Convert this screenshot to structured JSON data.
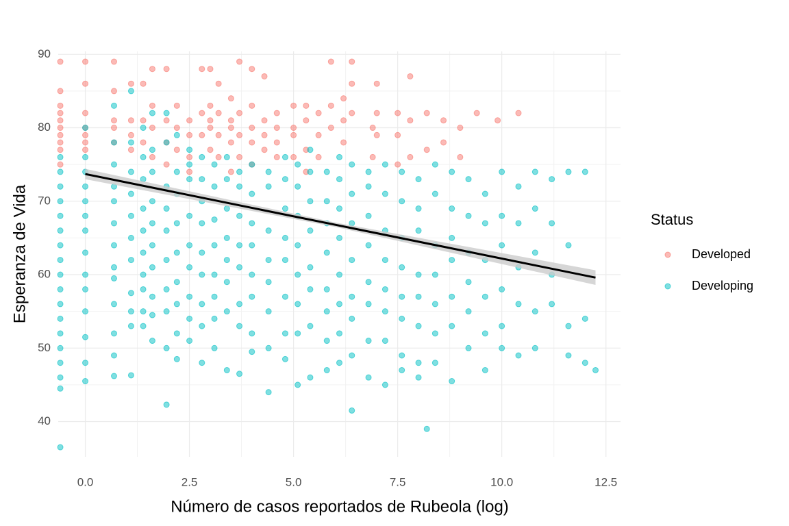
{
  "chart_data": {
    "type": "scatter",
    "x_label": "Número de casos reportados de Rubeola (log)",
    "y_label": "Esperanza de Vida",
    "legend_title": "Status",
    "legend_position": "right",
    "grid": true,
    "xlim": [
      -0.65,
      12.85
    ],
    "ylim": [
      35.2,
      90.4
    ],
    "xticks": [
      {
        "value": 0,
        "label": "0.0"
      },
      2.5,
      {
        "value": 5,
        "label": "5.0"
      },
      7.5,
      {
        "value": 10,
        "label": "10.0"
      },
      12.5
    ],
    "yticks": [
      40,
      50,
      60,
      70,
      80,
      90
    ],
    "series": [
      {
        "name": "Developed",
        "color": "#F8766D",
        "x": [
          -0.6,
          -0.6,
          -0.6,
          -0.6,
          -0.6,
          -0.6,
          -0.6,
          -0.6,
          -0.6,
          -0.6,
          0,
          0,
          0,
          0,
          0,
          0,
          0,
          0.69,
          0.69,
          0.69,
          0.69,
          0.69,
          1.1,
          1.1,
          1.1,
          1.1,
          1.39,
          1.39,
          1.39,
          1.61,
          1.61,
          1.61,
          1.61,
          1.95,
          1.95,
          1.95,
          1.95,
          2.2,
          2.2,
          2.2,
          2.5,
          2.5,
          2.5,
          2.5,
          2.8,
          2.8,
          2.8,
          3,
          3,
          3,
          3,
          3,
          3.2,
          3.2,
          3.2,
          3.2,
          3.5,
          3.5,
          3.5,
          3.5,
          3.5,
          3.7,
          3.7,
          3.7,
          3.7,
          4,
          4,
          4,
          4,
          4,
          4.3,
          4.3,
          4.3,
          4.3,
          4.6,
          4.6,
          4.6,
          4.6,
          5,
          5,
          5,
          5,
          5.3,
          5.3,
          5.3,
          5.3,
          5.6,
          5.6,
          5.6,
          5.9,
          5.9,
          5.9,
          6.2,
          6.2,
          6.2,
          6.4,
          6.4,
          6.4,
          6.9,
          6.9,
          7,
          7,
          7,
          7.5,
          7.5,
          7.5,
          7.8,
          7.8,
          7.8,
          8.2,
          8.2,
          8.6,
          8.6,
          9,
          9,
          9.4,
          9.9,
          10.4
        ],
        "values": [
          89,
          85,
          83,
          82,
          81,
          80,
          79,
          78,
          77,
          75,
          89,
          86,
          82,
          80,
          79,
          78,
          77,
          89,
          85,
          81,
          80,
          78,
          86,
          81,
          79,
          77,
          86,
          81,
          78,
          88,
          83,
          80,
          76,
          88,
          81,
          78,
          75,
          83,
          80,
          77,
          81,
          79,
          76,
          74,
          88,
          82,
          79,
          88,
          83,
          81,
          80,
          77,
          86,
          82,
          79,
          76,
          84,
          81,
          80,
          78,
          74,
          89,
          82,
          79,
          76,
          88,
          83,
          80,
          78,
          75,
          87,
          81,
          79,
          77,
          82,
          80,
          78,
          76,
          83,
          80,
          79,
          76,
          83,
          81,
          77,
          74,
          82,
          79,
          76,
          89,
          83,
          80,
          84,
          81,
          78,
          89,
          86,
          82,
          80,
          76,
          86,
          82,
          79,
          82,
          79,
          75,
          87,
          81,
          76,
          82,
          77,
          81,
          78,
          80,
          76,
          82,
          81,
          82
        ]
      },
      {
        "name": "Developing",
        "color": "#00BFC4",
        "x": [
          -0.6,
          -0.6,
          -0.6,
          -0.6,
          -0.6,
          -0.6,
          -0.6,
          -0.6,
          -0.6,
          -0.6,
          -0.6,
          -0.6,
          -0.6,
          -0.6,
          -0.6,
          -0.6,
          -0.6,
          -0.6,
          0,
          0,
          0,
          0,
          0,
          0,
          0,
          0,
          0,
          0,
          0,
          0,
          0,
          0,
          0.69,
          0.69,
          0.69,
          0.69,
          0.69,
          0.69,
          0.69,
          0.69,
          0.69,
          0.69,
          0.69,
          0.69,
          0.69,
          1.1,
          1.1,
          1.1,
          1.1,
          1.1,
          1.1,
          1.1,
          1.1,
          1.1,
          1.1,
          1.1,
          1.39,
          1.39,
          1.39,
          1.39,
          1.39,
          1.39,
          1.39,
          1.39,
          1.39,
          1.39,
          1.61,
          1.61,
          1.61,
          1.61,
          1.61,
          1.61,
          1.61,
          1.61,
          1.61,
          1.61,
          1.95,
          1.95,
          1.95,
          1.95,
          1.95,
          1.95,
          1.95,
          1.95,
          1.95,
          1.95,
          2.2,
          2.2,
          2.2,
          2.2,
          2.2,
          2.2,
          2.2,
          2.2,
          2.2,
          2.5,
          2.5,
          2.5,
          2.5,
          2.5,
          2.5,
          2.5,
          2.5,
          2.5,
          2.8,
          2.8,
          2.8,
          2.8,
          2.8,
          2.8,
          2.8,
          2.8,
          2.8,
          3.1,
          3.1,
          3.1,
          3.1,
          3.1,
          3.1,
          3.1,
          3.1,
          3.4,
          3.4,
          3.4,
          3.4,
          3.4,
          3.4,
          3.4,
          3.4,
          3.7,
          3.7,
          3.7,
          3.7,
          3.7,
          3.7,
          3.7,
          3.7,
          4,
          4,
          4,
          4,
          4,
          4,
          4,
          4,
          4.4,
          4.4,
          4.4,
          4.4,
          4.4,
          4.4,
          4.4,
          4.4,
          4.8,
          4.8,
          4.8,
          4.8,
          4.8,
          4.8,
          4.8,
          4.8,
          5.1,
          5.1,
          5.1,
          5.1,
          5.1,
          5.1,
          5.1,
          5.1,
          5.4,
          5.4,
          5.4,
          5.4,
          5.4,
          5.4,
          5.4,
          5.4,
          5.8,
          5.8,
          5.8,
          5.8,
          5.8,
          5.8,
          5.8,
          5.8,
          6.1,
          6.1,
          6.1,
          6.1,
          6.1,
          6.1,
          6.1,
          6.1,
          6.4,
          6.4,
          6.4,
          6.4,
          6.4,
          6.4,
          6.4,
          6.4,
          6.8,
          6.8,
          6.8,
          6.8,
          6.8,
          6.8,
          6.8,
          6.8,
          7.2,
          7.2,
          7.2,
          7.2,
          7.2,
          7.2,
          7.2,
          7.2,
          7.6,
          7.6,
          7.6,
          7.6,
          7.6,
          7.6,
          7.6,
          7.6,
          8,
          8,
          8,
          8,
          8,
          8,
          8,
          8,
          8.2,
          8.4,
          8.4,
          8.4,
          8.4,
          8.4,
          8.4,
          8.4,
          8.8,
          8.8,
          8.8,
          8.8,
          8.8,
          8.8,
          8.8,
          9.2,
          9.2,
          9.2,
          9.2,
          9.2,
          9.2,
          9.6,
          9.6,
          9.6,
          9.6,
          9.6,
          9.6,
          10,
          10,
          10,
          10,
          10,
          10,
          10.4,
          10.4,
          10.4,
          10.4,
          10.4,
          10.8,
          10.8,
          10.8,
          10.8,
          10.8,
          11.2,
          11.2,
          11.2,
          11.2,
          11.6,
          11.6,
          11.6,
          11.6,
          12,
          12,
          12,
          12.25
        ],
        "values": [
          76,
          74,
          72,
          70,
          68,
          66,
          64,
          62,
          60,
          58,
          56,
          54,
          52,
          50,
          48,
          46,
          44.5,
          36.5,
          80,
          76,
          74,
          72,
          70,
          68,
          66,
          63,
          60,
          58,
          55,
          51.5,
          48,
          45.5,
          83,
          78,
          75,
          72,
          70,
          67,
          64,
          61,
          59.5,
          56,
          52,
          49,
          46.2,
          85,
          78,
          74,
          71,
          68,
          65,
          62,
          57.5,
          55,
          53,
          46.3,
          80,
          76,
          73,
          69,
          66,
          63,
          60,
          58,
          55,
          53,
          82,
          77,
          74,
          70,
          67,
          64,
          61,
          57,
          54.5,
          51,
          82,
          78,
          72,
          69,
          66,
          62,
          58,
          55,
          50,
          42.3,
          79,
          74,
          71,
          67,
          63,
          59,
          56,
          52,
          48.5,
          77,
          75,
          73,
          68,
          64,
          61,
          57,
          54,
          51,
          76,
          73,
          70,
          67,
          63,
          60,
          56,
          53,
          48,
          75,
          72,
          67.5,
          64,
          60,
          57,
          54,
          50,
          76,
          73,
          69,
          65,
          62,
          59,
          55,
          47,
          74,
          72,
          68,
          64,
          61,
          56,
          53,
          46.5,
          75,
          71,
          67,
          64,
          60,
          57,
          52,
          49.5,
          74,
          72,
          66,
          62,
          59,
          55,
          50,
          44,
          76,
          73,
          69,
          65,
          62,
          57,
          52,
          48.5,
          75,
          72,
          68,
          64,
          60,
          56,
          52,
          45,
          77,
          74,
          70,
          66,
          61,
          58,
          53,
          46,
          74,
          70,
          67,
          63,
          58,
          55,
          51,
          47,
          76,
          73,
          69,
          65,
          60,
          56,
          52,
          48,
          75,
          71,
          67,
          62,
          57,
          54,
          49,
          41.5,
          74,
          72,
          68,
          64,
          59,
          56,
          51,
          46,
          75,
          71,
          66,
          62,
          58,
          55,
          51,
          45,
          74,
          70,
          65,
          61,
          57,
          54,
          49,
          47,
          73,
          69,
          66,
          60,
          57,
          53,
          48,
          46,
          39,
          75,
          71,
          64,
          60,
          56,
          52,
          48,
          74,
          69,
          65,
          62,
          57,
          53,
          45.5,
          73,
          68,
          63,
          59,
          55,
          50,
          71,
          67,
          62,
          57,
          52,
          47,
          74,
          68,
          64,
          58,
          53,
          50,
          72,
          67,
          61,
          56,
          49,
          74,
          69,
          63,
          55,
          50,
          73,
          67,
          60,
          56,
          74,
          64,
          53,
          49,
          74,
          54,
          48,
          47
        ]
      }
    ],
    "trend": {
      "color": "#000000",
      "band_color": "#cccccc",
      "x": [
        0,
        12.25
      ],
      "values": [
        73.7,
        59.6
      ],
      "band_x": [
        0,
        6,
        12.25
      ],
      "band_lower": [
        73.0,
        66.5,
        58.6
      ],
      "band_upper": [
        74.4,
        67.1,
        60.6
      ]
    }
  }
}
